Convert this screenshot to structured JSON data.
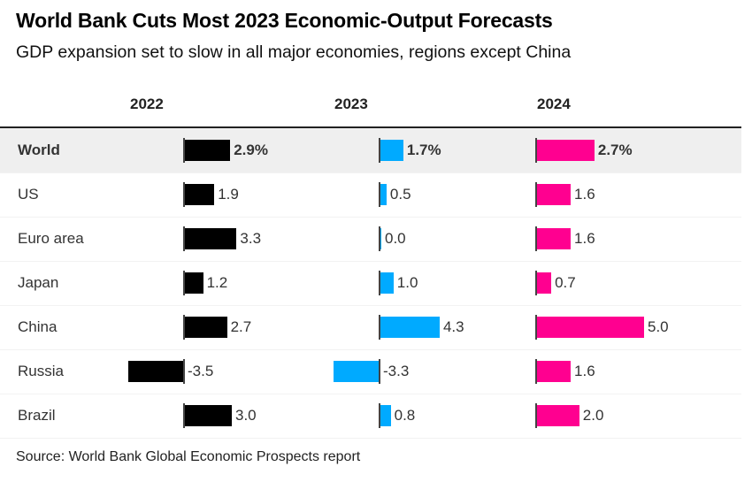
{
  "title": "World Bank Cuts Most 2023 Economic-Output Forecasts",
  "subtitle": "GDP expansion set to slow in all major economies, regions except China",
  "source": "Source: World Bank Global Economic Prospects report",
  "chart_data": {
    "type": "bar",
    "title": "World Bank Cuts Most 2023 Economic-Output Forecasts",
    "categories": [
      "World",
      "US",
      "Euro area",
      "Japan",
      "China",
      "Russia",
      "Brazil"
    ],
    "series": [
      {
        "name": "2022",
        "color": "#000000",
        "values": [
          2.9,
          1.9,
          3.3,
          1.2,
          2.7,
          -3.5,
          3.0
        ],
        "labels": [
          "2.9%",
          "1.9",
          "3.3",
          "1.2",
          "2.7",
          "-3.5",
          "3.0"
        ]
      },
      {
        "name": "2023",
        "color": "#00aaff",
        "values": [
          1.7,
          0.5,
          0.0,
          1.0,
          4.3,
          -3.3,
          0.8
        ],
        "labels": [
          "1.7%",
          "0.5",
          "0.0",
          "1.0",
          "4.3",
          "-3.3",
          "0.8"
        ]
      },
      {
        "name": "2024",
        "color": "#ff0090",
        "values": [
          2.7,
          1.6,
          1.6,
          0.7,
          5.0,
          1.6,
          2.0
        ],
        "labels": [
          "2.7%",
          "1.6",
          "1.6",
          "0.7",
          "5.0",
          "1.6",
          "2.0"
        ]
      }
    ],
    "highlight_category": "World",
    "orientation": "horizontal"
  }
}
